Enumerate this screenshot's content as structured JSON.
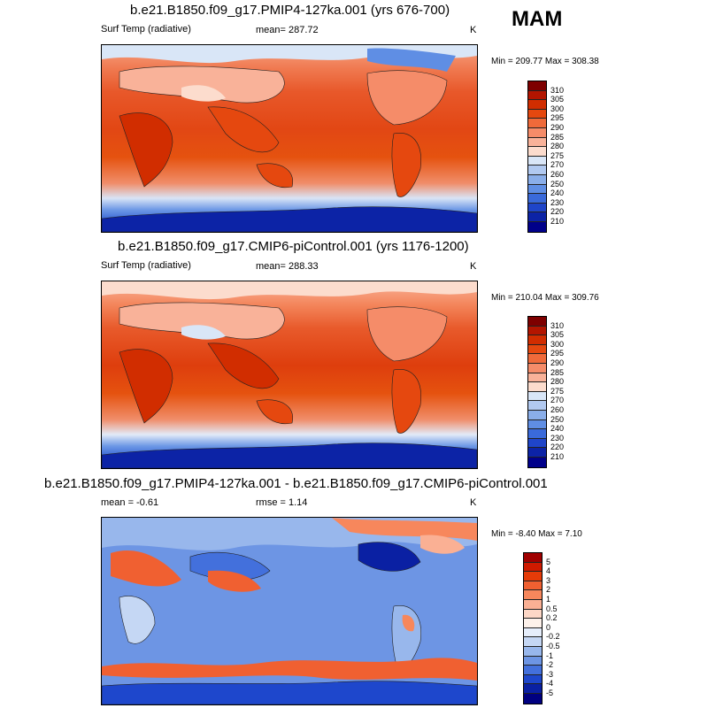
{
  "season": "MAM",
  "chart_data": [
    {
      "type": "heatmap",
      "title": "b.e21.B1850.f09_g17.PMIP4-127ka.001 (yrs 676-700)",
      "variable": "Surf Temp (radiative)",
      "mean_label": "mean= 287.72",
      "units": "K",
      "minmax_label": "Min = 209.77 Max = 308.38",
      "min": 209.77,
      "max": 308.38,
      "mean": 287.72,
      "levels": [
        "310",
        "305",
        "300",
        "295",
        "290",
        "285",
        "280",
        "275",
        "270",
        "260",
        "250",
        "240",
        "230",
        "220",
        "210"
      ],
      "colors": [
        "#7e0000",
        "#b31500",
        "#d12d00",
        "#e5480f",
        "#ef6a3a",
        "#f58c69",
        "#f9b299",
        "#fcdccd",
        "#d9e6f7",
        "#b1c9f0",
        "#8aaee9",
        "#5f8ee4",
        "#3a6ada",
        "#1f45c9",
        "#0c23a6",
        "#00008a"
      ]
    },
    {
      "type": "heatmap",
      "title": "b.e21.B1850.f09_g17.CMIP6-piControl.001 (yrs 1176-1200)",
      "variable": "Surf Temp (radiative)",
      "mean_label": "mean= 288.33",
      "units": "K",
      "minmax_label": "Min = 210.04 Max = 309.76",
      "min": 210.04,
      "max": 309.76,
      "mean": 288.33,
      "levels": [
        "310",
        "305",
        "300",
        "295",
        "290",
        "285",
        "280",
        "275",
        "270",
        "260",
        "250",
        "240",
        "230",
        "220",
        "210"
      ],
      "colors": [
        "#7e0000",
        "#b31500",
        "#d12d00",
        "#e5480f",
        "#ef6a3a",
        "#f58c69",
        "#f9b299",
        "#fcdccd",
        "#d9e6f7",
        "#b1c9f0",
        "#8aaee9",
        "#5f8ee4",
        "#3a6ada",
        "#1f45c9",
        "#0c23a6",
        "#00008a"
      ]
    },
    {
      "type": "heatmap",
      "title": "b.e21.B1850.f09_g17.PMIP4-127ka.001 - b.e21.B1850.f09_g17.CMIP6-piControl.001",
      "mean_label": "mean =  -0.61",
      "rmse_label": "rmse =   1.14",
      "units": "K",
      "minmax_label": "Min =  -8.40 Max =   7.10",
      "min": -8.4,
      "max": 7.1,
      "mean": -0.61,
      "rmse": 1.14,
      "levels": [
        "5",
        "4",
        "3",
        "2",
        "1",
        "0.5",
        "0.2",
        "0",
        "-0.2",
        "-0.5",
        "-1",
        "-2",
        "-3",
        "-4",
        "-5"
      ],
      "colors": [
        "#a00000",
        "#cf1a00",
        "#e63b08",
        "#f06031",
        "#f7875c",
        "#fab094",
        "#fdd7c6",
        "#fdf1ea",
        "#e6eefb",
        "#c5d7f4",
        "#98b7ec",
        "#6d95e4",
        "#4370dc",
        "#1e47cc",
        "#0a20a3",
        "#000080"
      ]
    }
  ]
}
